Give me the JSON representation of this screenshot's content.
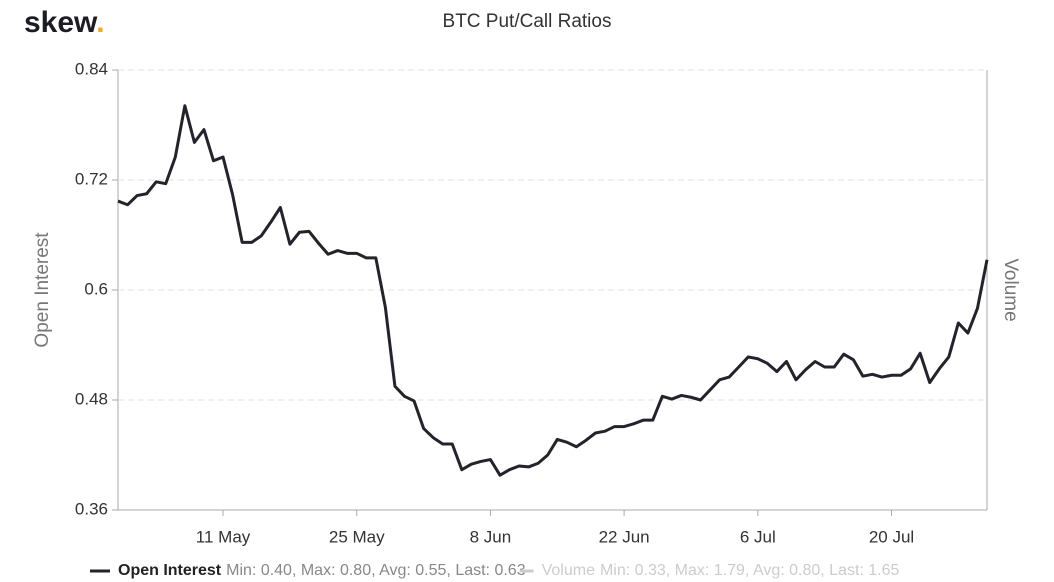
{
  "logo": {
    "text": "skew",
    "dot": "."
  },
  "chart_data": {
    "type": "line",
    "title": "BTC Put/Call Ratios",
    "y_label": "Open Interest",
    "y2_label": "Volume",
    "categories": [
      null,
      null,
      null,
      null,
      null,
      null,
      null,
      null,
      null,
      null,
      null,
      "11 May",
      null,
      null,
      null,
      null,
      null,
      null,
      null,
      null,
      null,
      null,
      null,
      null,
      null,
      "25 May",
      null,
      null,
      null,
      null,
      null,
      null,
      null,
      null,
      null,
      null,
      null,
      null,
      null,
      "8 Jun",
      null,
      null,
      null,
      null,
      null,
      null,
      null,
      null,
      null,
      null,
      null,
      null,
      null,
      "22 Jun",
      null,
      null,
      null,
      null,
      null,
      null,
      null,
      null,
      null,
      null,
      null,
      null,
      null,
      "6 Jul",
      null,
      null,
      null,
      null,
      null,
      null,
      null,
      null,
      null,
      null,
      null,
      null,
      null,
      "20 Jul",
      null,
      null,
      null,
      null,
      null,
      null,
      null,
      null,
      null,
      null
    ],
    "series": [
      {
        "name": "Open Interest",
        "color": "#23232b",
        "summary": "Min: 0.40, Max: 0.80, Avg: 0.55, Last: 0.63",
        "values": [
          0.697,
          0.693,
          0.703,
          0.705,
          0.718,
          0.716,
          0.745,
          0.801,
          0.761,
          0.775,
          0.741,
          0.745,
          0.704,
          0.652,
          0.652,
          0.659,
          0.674,
          0.69,
          0.65,
          0.663,
          0.664,
          0.651,
          0.639,
          0.643,
          0.64,
          0.64,
          0.635,
          0.635,
          0.581,
          0.495,
          0.484,
          0.479,
          0.449,
          0.439,
          0.432,
          0.432,
          0.404,
          0.41,
          0.413,
          0.415,
          0.398,
          0.404,
          0.408,
          0.407,
          0.411,
          0.42,
          0.437,
          0.434,
          0.429,
          0.436,
          0.444,
          0.446,
          0.451,
          0.451,
          0.454,
          0.458,
          0.458,
          0.484,
          0.481,
          0.485,
          0.483,
          0.48,
          0.491,
          0.502,
          0.505,
          0.516,
          0.527,
          0.525,
          0.52,
          0.511,
          0.522,
          0.502,
          0.513,
          0.522,
          0.516,
          0.516,
          0.53,
          0.524,
          0.506,
          0.508,
          0.505,
          0.507,
          0.507,
          0.514,
          0.531,
          0.499,
          0.514,
          0.527,
          0.564,
          0.553,
          0.58,
          0.633
        ]
      }
    ],
    "hidden_series": [
      {
        "name": "Volume",
        "summary": "Min: 0.33, Max: 1.79, Avg: 0.80, Last: 1.65"
      }
    ],
    "ylim": [
      0.36,
      0.84
    ],
    "yticks": [
      0.36,
      0.48,
      0.6,
      0.72,
      0.84
    ],
    "grid": true
  }
}
